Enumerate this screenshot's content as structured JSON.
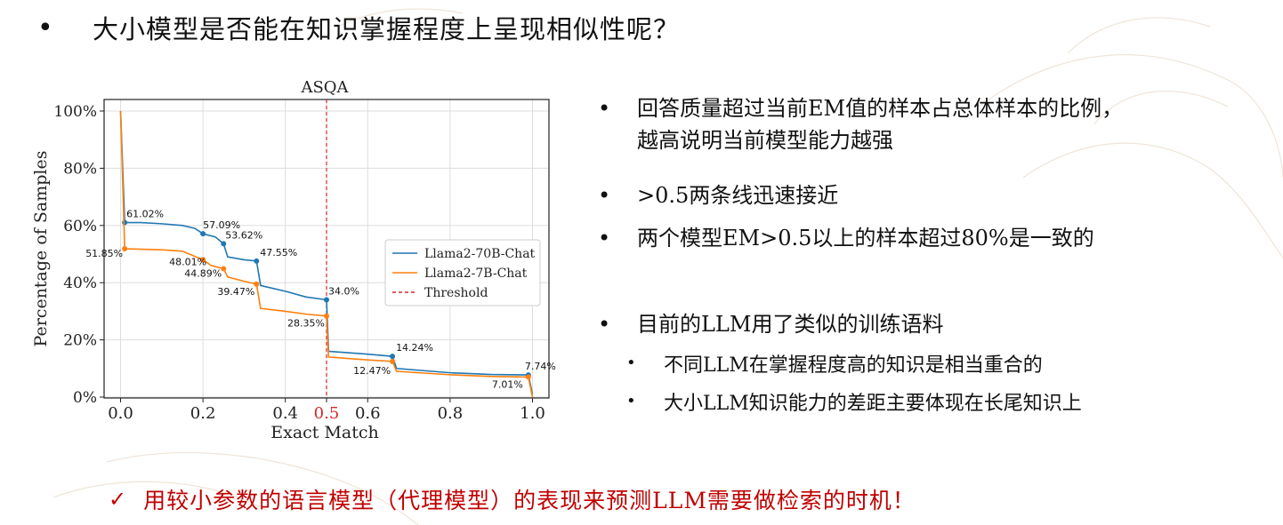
{
  "title": {
    "bullet": "•",
    "text": "大小模型是否能在知识掌握程度上呈现相似性呢？"
  },
  "chart_data": {
    "type": "line",
    "title": "ASQA",
    "xlabel": "Exact Match",
    "ylabel": "Percentage of Samples",
    "xlim": [
      -0.04,
      1.04
    ],
    "ylim": [
      0,
      100
    ],
    "x_ticks": [
      {
        "value": 0.0,
        "label": "0.0",
        "highlight": false
      },
      {
        "value": 0.2,
        "label": "0.2",
        "highlight": false
      },
      {
        "value": 0.4,
        "label": "0.4",
        "highlight": false
      },
      {
        "value": 0.5,
        "label": "0.5",
        "highlight": true
      },
      {
        "value": 0.6,
        "label": "0.6",
        "highlight": false
      },
      {
        "value": 0.8,
        "label": "0.8",
        "highlight": false
      },
      {
        "value": 1.0,
        "label": "1.0",
        "highlight": false
      }
    ],
    "y_ticks": [
      {
        "value": 0,
        "label": "0%"
      },
      {
        "value": 20,
        "label": "20%"
      },
      {
        "value": 40,
        "label": "40%"
      },
      {
        "value": 60,
        "label": "60%"
      },
      {
        "value": 80,
        "label": "80%"
      },
      {
        "value": 100,
        "label": "100%"
      }
    ],
    "grid": true,
    "threshold": {
      "x": 0.5,
      "name": "Threshold",
      "color": "#d62728"
    },
    "legend_position": "center-right",
    "series": [
      {
        "name": "Llama2-70B-Chat",
        "color": "#1f77b4",
        "points": [
          [
            0.0,
            100
          ],
          [
            0.01,
            61.02
          ],
          [
            0.05,
            61
          ],
          [
            0.1,
            60.6
          ],
          [
            0.15,
            60
          ],
          [
            0.18,
            59
          ],
          [
            0.2,
            57.09
          ],
          [
            0.23,
            56
          ],
          [
            0.25,
            53.62
          ],
          [
            0.26,
            49
          ],
          [
            0.3,
            48
          ],
          [
            0.33,
            47.55
          ],
          [
            0.34,
            39
          ],
          [
            0.4,
            37
          ],
          [
            0.45,
            35
          ],
          [
            0.5,
            34.0
          ],
          [
            0.505,
            16
          ],
          [
            0.6,
            15
          ],
          [
            0.66,
            14.24
          ],
          [
            0.67,
            10
          ],
          [
            0.8,
            8.5
          ],
          [
            0.9,
            7.9
          ],
          [
            0.99,
            7.74
          ],
          [
            1.0,
            1
          ]
        ],
        "markers": [
          {
            "x": 0.01,
            "y": 61.02,
            "label": "61.02%"
          },
          {
            "x": 0.2,
            "y": 57.09,
            "label": "57.09%"
          },
          {
            "x": 0.25,
            "y": 53.62,
            "label": "53.62%"
          },
          {
            "x": 0.33,
            "y": 47.55,
            "label": "47.55%"
          },
          {
            "x": 0.5,
            "y": 34.0,
            "label": "34.0%"
          },
          {
            "x": 0.66,
            "y": 14.24,
            "label": "14.24%"
          },
          {
            "x": 0.99,
            "y": 7.74,
            "label": "7.74%"
          }
        ]
      },
      {
        "name": "Llama2-7B-Chat",
        "color": "#ff7f0e",
        "points": [
          [
            0.0,
            100
          ],
          [
            0.01,
            51.85
          ],
          [
            0.1,
            51.5
          ],
          [
            0.15,
            51
          ],
          [
            0.2,
            48.01
          ],
          [
            0.22,
            46
          ],
          [
            0.25,
            44.89
          ],
          [
            0.26,
            42
          ],
          [
            0.3,
            40.5
          ],
          [
            0.33,
            39.47
          ],
          [
            0.34,
            31
          ],
          [
            0.4,
            30
          ],
          [
            0.45,
            29
          ],
          [
            0.5,
            28.35
          ],
          [
            0.505,
            14
          ],
          [
            0.6,
            13
          ],
          [
            0.66,
            12.47
          ],
          [
            0.67,
            9
          ],
          [
            0.8,
            7.8
          ],
          [
            0.9,
            7.2
          ],
          [
            0.99,
            7.01
          ],
          [
            1.0,
            0
          ]
        ],
        "markers": [
          {
            "x": 0.01,
            "y": 51.85,
            "label": "51.85%"
          },
          {
            "x": 0.2,
            "y": 48.01,
            "label": "48.01%"
          },
          {
            "x": 0.25,
            "y": 44.89,
            "label": "44.89%"
          },
          {
            "x": 0.33,
            "y": 39.47,
            "label": "39.47%"
          },
          {
            "x": 0.5,
            "y": 28.35,
            "label": "28.35%"
          },
          {
            "x": 0.66,
            "y": 12.47,
            "label": "12.47%"
          },
          {
            "x": 0.99,
            "y": 7.01,
            "label": "7.01%"
          }
        ]
      }
    ]
  },
  "bullets": [
    {
      "dot": "•",
      "lines": [
        "回答质量超过当前EM值的样本占总体样本的比例，",
        "越高说明当前模型能力越强"
      ]
    },
    {
      "dot": "•",
      "lines": [
        ">0.5两条线迅速接近"
      ]
    },
    {
      "dot": "•",
      "lines": [
        "两个模型EM>0.5以上的样本超过80%是一致的"
      ]
    },
    {
      "dot": "•",
      "lines": [
        "目前的LLM用了类似的训练语料"
      ]
    }
  ],
  "sub_bullets": [
    {
      "dot": "•",
      "text": "不同LLM在掌握程度高的知识是相当重合的"
    },
    {
      "dot": "•",
      "text": "大小LLM知识能力的差距主要体现在长尾知识上"
    }
  ],
  "conclusion": {
    "check": "✓",
    "text": "用较小参数的语言模型（代理模型）的表现来预测LLM需要做检索的时机！"
  }
}
